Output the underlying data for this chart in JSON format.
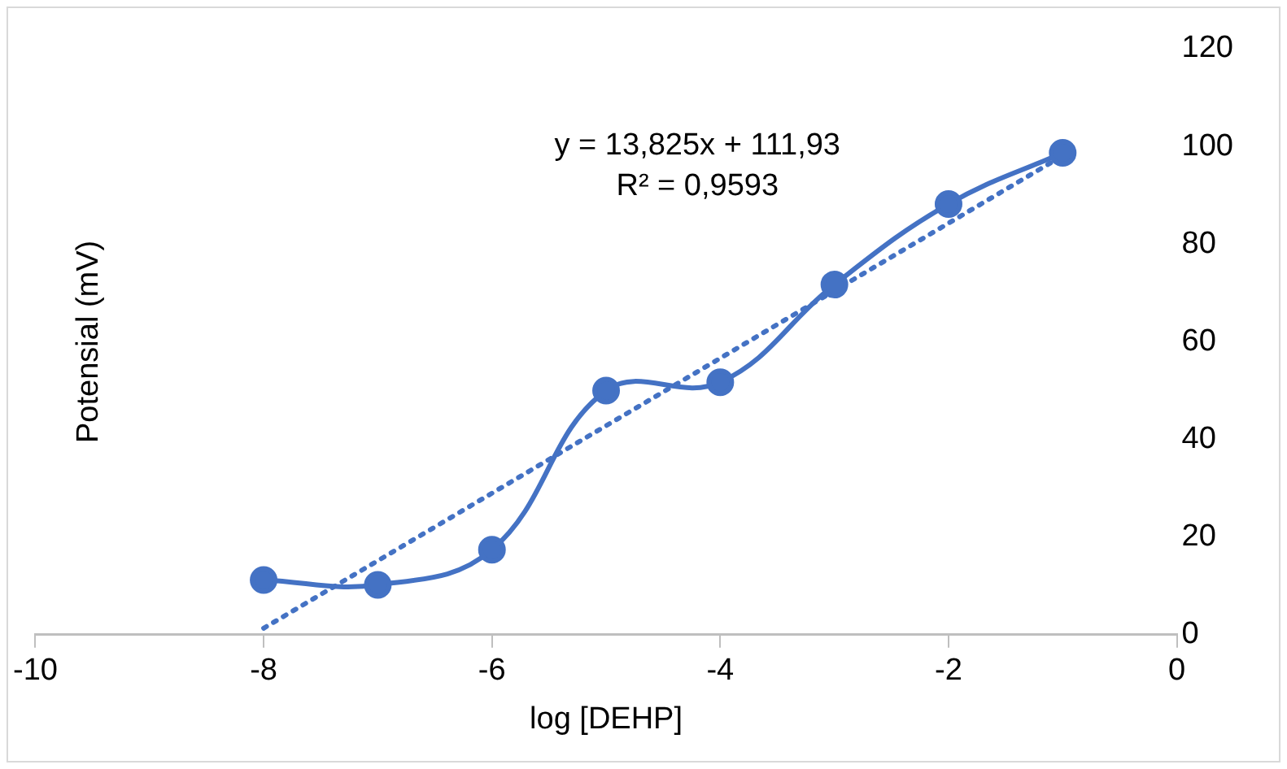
{
  "chart_data": {
    "type": "line",
    "xlabel": "log [DEHP]",
    "ylabel": "Potensial (mV)",
    "x": [
      -8,
      -7,
      -6,
      -5,
      -4,
      -3,
      -2,
      -1
    ],
    "series": [
      {
        "color": "#4472c4",
        "values": [
          11.2,
          10.2,
          17.4,
          50,
          51.7,
          71.7,
          88.2,
          98.7
        ],
        "marker": "circle",
        "line_style": "solid"
      },
      {
        "type": "line",
        "x": [
          -8,
          -1
        ],
        "color": "#4472c4",
        "values": [
          1.33,
          98.1
        ],
        "marker": "none",
        "line_style": "dotted"
      }
    ],
    "xlim": [
      -10,
      0
    ],
    "xticks": [
      -10,
      -8,
      -6,
      -4,
      -2,
      0
    ],
    "ylim": [
      0,
      120
    ],
    "yticks": [
      0,
      20,
      40,
      60,
      80,
      100,
      120
    ],
    "annotations": [
      "y = 13,825x + 111,93",
      "R² = 0,9593"
    ],
    "grid": false,
    "legend": false
  }
}
